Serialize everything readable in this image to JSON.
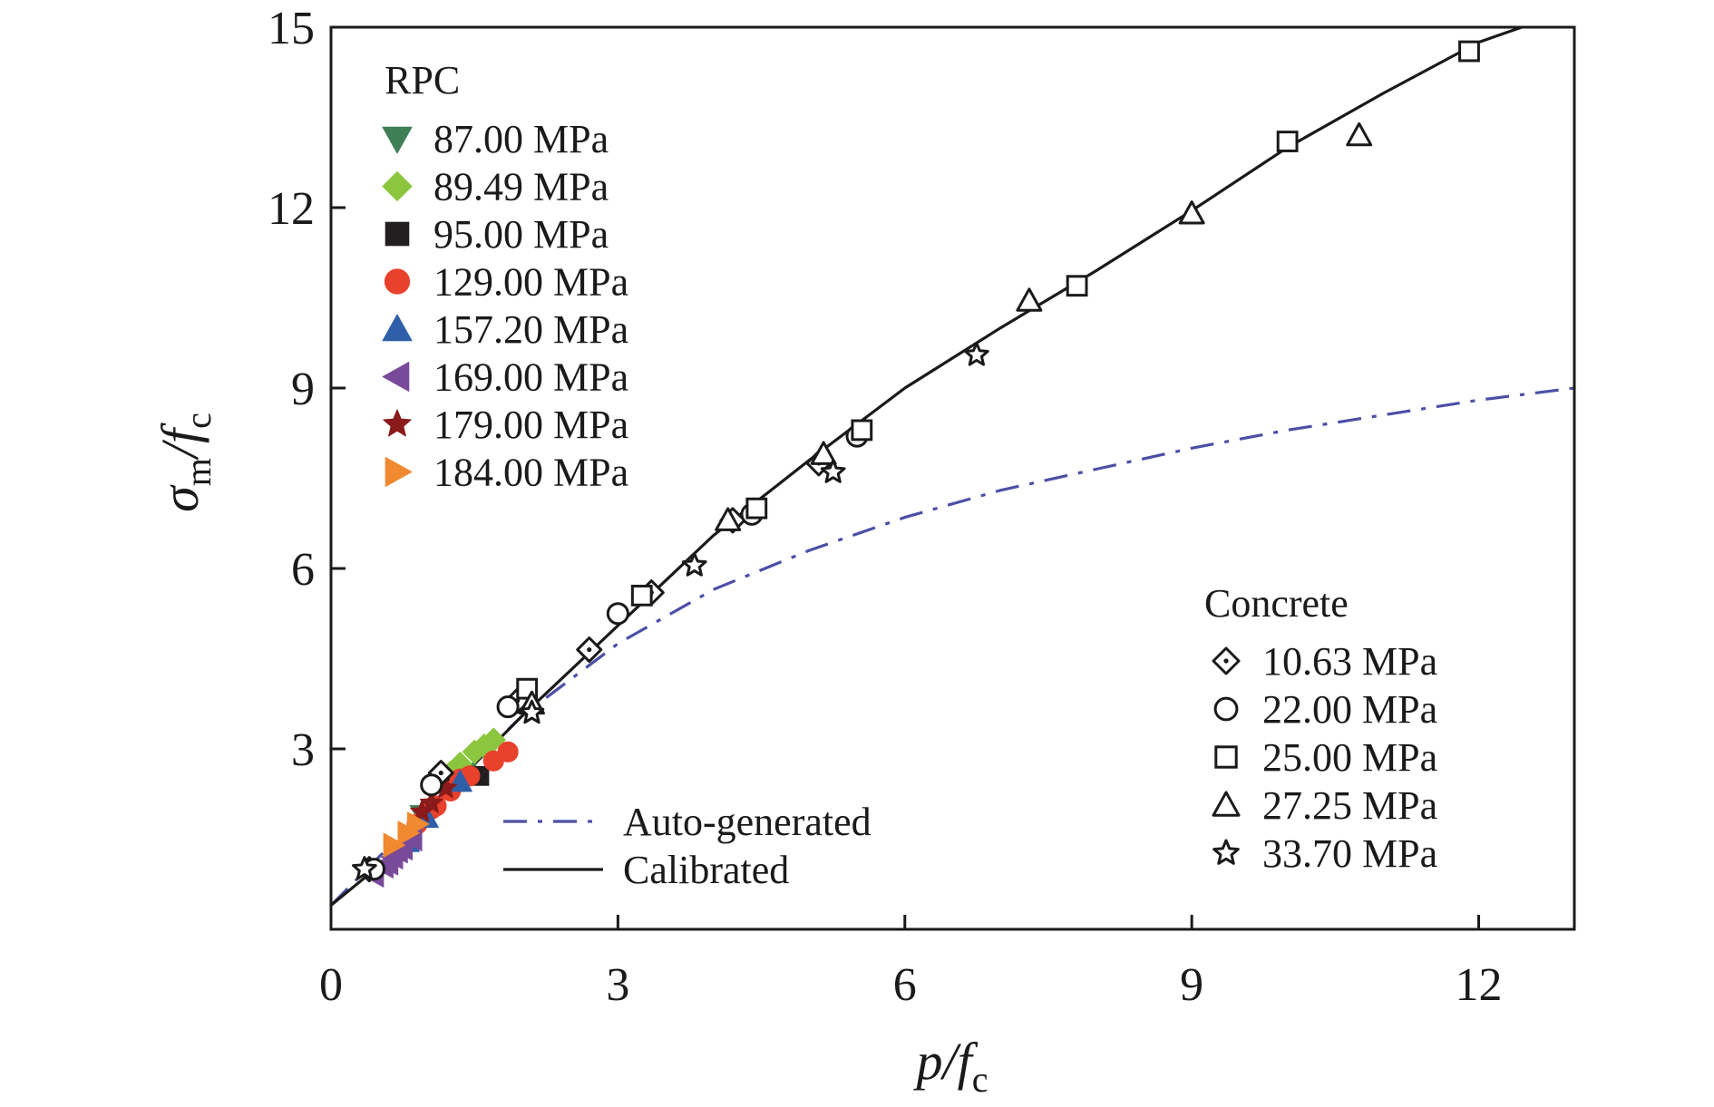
{
  "chart_data": {
    "type": "scatter",
    "xlim": [
      0,
      13
    ],
    "ylim": [
      0,
      15
    ],
    "x_ticks": [
      0,
      3,
      6,
      9,
      12
    ],
    "y_ticks": [
      3,
      6,
      9,
      12,
      15
    ],
    "x_tick_labels": [
      "0",
      "3",
      "6",
      "9",
      "12"
    ],
    "y_tick_labels": [
      "3",
      "6",
      "9",
      "12",
      "15"
    ],
    "xlabel": {
      "main": "p/f",
      "sub": "c"
    },
    "ylabel": {
      "main": "σ",
      "sub1": "m",
      "mid": "/f",
      "sub2": "c"
    },
    "grid": false,
    "legend_rpc_title": "RPC",
    "legend_concrete_title": "Concrete",
    "rpc_series": [
      {
        "name": "87.00 MPa",
        "marker": "triangle-down",
        "color": "#3f7f57",
        "points": [
          [
            0.95,
            1.9
          ],
          [
            1.25,
            2.4
          ],
          [
            1.4,
            2.6
          ]
        ]
      },
      {
        "name": "89.49 MPa",
        "marker": "diamond",
        "color": "#8cc63f",
        "points": [
          [
            1.35,
            2.75
          ],
          [
            1.5,
            2.95
          ],
          [
            1.7,
            3.15
          ],
          [
            1.6,
            3.05
          ],
          [
            1.25,
            2.6
          ]
        ]
      },
      {
        "name": "95.00 MPa",
        "marker": "square",
        "color": "#231f20",
        "points": [
          [
            1.55,
            2.55
          ],
          [
            1.3,
            2.45
          ]
        ]
      },
      {
        "name": "129.00 MPa",
        "marker": "circle",
        "color": "#e8412c",
        "points": [
          [
            0.9,
            1.75
          ],
          [
            1.1,
            2.05
          ],
          [
            1.25,
            2.3
          ],
          [
            1.45,
            2.55
          ],
          [
            1.7,
            2.8
          ],
          [
            1.85,
            2.95
          ],
          [
            1.05,
            2.0
          ],
          [
            1.35,
            2.5
          ]
        ]
      },
      {
        "name": "157.20 MPa",
        "marker": "triangle-up",
        "color": "#2f5fa8",
        "points": [
          [
            0.8,
            1.45
          ],
          [
            1.0,
            1.85
          ],
          [
            1.35,
            2.45
          ]
        ]
      },
      {
        "name": "169.00 MPa",
        "marker": "triangle-left",
        "color": "#7a4a9a",
        "points": [
          [
            0.45,
            0.9
          ],
          [
            0.55,
            1.05
          ],
          [
            0.65,
            1.2
          ],
          [
            0.75,
            1.35
          ],
          [
            0.85,
            1.5
          ],
          [
            0.7,
            1.3
          ],
          [
            0.6,
            1.1
          ]
        ]
      },
      {
        "name": "179.00 MPa",
        "marker": "star",
        "color": "#8b1a1a",
        "points": [
          [
            0.95,
            1.95
          ],
          [
            1.05,
            2.1
          ],
          [
            1.2,
            2.35
          ]
        ]
      },
      {
        "name": "184.00 MPa",
        "marker": "triangle-right",
        "color": "#f0892f",
        "points": [
          [
            0.65,
            1.4
          ],
          [
            0.8,
            1.6
          ],
          [
            0.9,
            1.75
          ]
        ]
      }
    ],
    "concrete_series": [
      {
        "name": "10.63 MPa",
        "marker": "diamond-dot",
        "points": [
          [
            0.4,
            1.0
          ],
          [
            1.15,
            2.6
          ],
          [
            1.95,
            3.8
          ],
          [
            2.7,
            4.65
          ],
          [
            3.35,
            5.6
          ],
          [
            4.2,
            6.8
          ],
          [
            5.1,
            7.75
          ]
        ]
      },
      {
        "name": "22.00 MPa",
        "marker": "circle-open",
        "points": [
          [
            0.45,
            1.0
          ],
          [
            1.05,
            2.4
          ],
          [
            1.85,
            3.7
          ],
          [
            3.0,
            5.25
          ],
          [
            4.4,
            6.9
          ],
          [
            5.5,
            8.2
          ]
        ]
      },
      {
        "name": "25.00 MPa",
        "marker": "square-open",
        "points": [
          [
            2.05,
            4.0
          ],
          [
            3.25,
            5.55
          ],
          [
            4.45,
            7.0
          ],
          [
            5.55,
            8.3
          ],
          [
            7.8,
            10.7
          ],
          [
            10.0,
            13.1
          ],
          [
            11.9,
            14.6
          ]
        ]
      },
      {
        "name": "27.25 MPa",
        "marker": "triangle-open",
        "points": [
          [
            2.1,
            3.75
          ],
          [
            4.15,
            6.8
          ],
          [
            5.15,
            7.9
          ],
          [
            7.3,
            10.45
          ],
          [
            9.0,
            11.9
          ],
          [
            10.75,
            13.2
          ]
        ]
      },
      {
        "name": "33.70 MPa",
        "marker": "star-open",
        "points": [
          [
            0.35,
            1.0
          ],
          [
            2.1,
            3.6
          ],
          [
            3.8,
            6.05
          ],
          [
            5.25,
            7.6
          ],
          [
            6.75,
            9.55
          ]
        ]
      }
    ],
    "lines": [
      {
        "name": "Auto-generated",
        "style": "dash-dot",
        "color": "#4b4fa6",
        "points": [
          [
            0.0,
            0.4
          ],
          [
            1.0,
            2.0
          ],
          [
            2.0,
            3.55
          ],
          [
            3.0,
            4.75
          ],
          [
            4.0,
            5.65
          ],
          [
            5.0,
            6.3
          ],
          [
            6.0,
            6.85
          ],
          [
            7.0,
            7.3
          ],
          [
            8.0,
            7.65
          ],
          [
            9.0,
            8.0
          ],
          [
            10.0,
            8.3
          ],
          [
            11.0,
            8.55
          ],
          [
            12.0,
            8.8
          ],
          [
            13.0,
            9.0
          ]
        ]
      },
      {
        "name": "Calibrated",
        "style": "solid",
        "color": "#1a1a1a",
        "points": [
          [
            0.0,
            0.4
          ],
          [
            0.5,
            1.05
          ],
          [
            1.0,
            1.9
          ],
          [
            1.5,
            2.75
          ],
          [
            2.0,
            3.55
          ],
          [
            2.5,
            4.3
          ],
          [
            3.0,
            5.05
          ],
          [
            4.0,
            6.55
          ],
          [
            5.0,
            7.8
          ],
          [
            6.0,
            9.0
          ],
          [
            7.0,
            10.0
          ],
          [
            8.0,
            10.95
          ],
          [
            9.0,
            11.95
          ],
          [
            10.0,
            13.0
          ],
          [
            11.0,
            13.9
          ],
          [
            12.0,
            14.75
          ],
          [
            12.45,
            15.0
          ]
        ]
      }
    ]
  }
}
